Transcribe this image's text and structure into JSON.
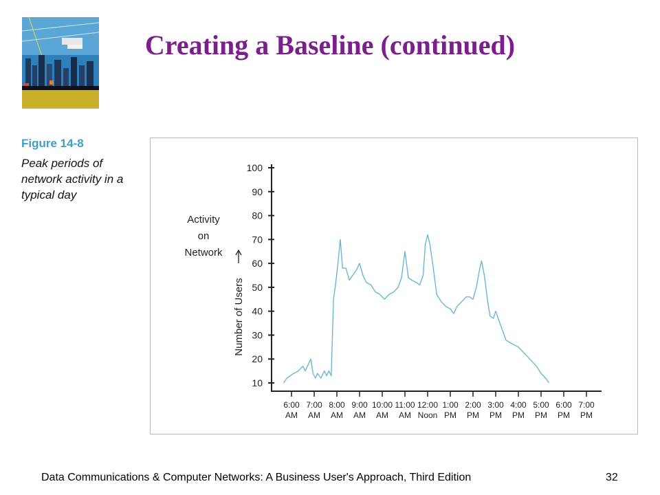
{
  "slide": {
    "title": "Creating a Baseline (continued)",
    "figure_number": "Figure 14-8",
    "figure_caption_lines": [
      "Peak periods of",
      "network activity in a",
      "typical day"
    ],
    "footer": "Data Communications & Computer Networks: A Business User's Approach, Third Edition",
    "page_number": "32"
  },
  "chart_data": {
    "type": "line",
    "title": "",
    "title_label_lines": [
      "Activity",
      "on",
      "Network"
    ],
    "ylabel": "Number of Users",
    "ylim": [
      10,
      100
    ],
    "yticks": [
      10,
      20,
      30,
      40,
      50,
      60,
      70,
      80,
      90,
      100
    ],
    "xticks": [
      {
        "top": "6:00",
        "bottom": "AM"
      },
      {
        "top": "7:00",
        "bottom": "AM"
      },
      {
        "top": "8:00",
        "bottom": "AM"
      },
      {
        "top": "9:00",
        "bottom": "AM"
      },
      {
        "top": "10:00",
        "bottom": "AM"
      },
      {
        "top": "11:00",
        "bottom": "AM"
      },
      {
        "top": "12:00",
        "bottom": "Noon"
      },
      {
        "top": "1:00",
        "bottom": "PM"
      },
      {
        "top": "2:00",
        "bottom": "PM"
      },
      {
        "top": "3:00",
        "bottom": "PM"
      },
      {
        "top": "4:00",
        "bottom": "PM"
      },
      {
        "top": "5:00",
        "bottom": "PM"
      },
      {
        "top": "6:00",
        "bottom": "PM"
      },
      {
        "top": "7:00",
        "bottom": "PM"
      }
    ],
    "line_color": "#6bb6cf",
    "points": [
      [
        -0.35,
        10
      ],
      [
        -0.2,
        12
      ],
      [
        -0.05,
        13
      ],
      [
        0.1,
        14
      ],
      [
        0.3,
        15
      ],
      [
        0.5,
        17
      ],
      [
        0.6,
        15
      ],
      [
        0.75,
        18
      ],
      [
        0.85,
        20
      ],
      [
        0.95,
        14
      ],
      [
        1.05,
        12
      ],
      [
        1.15,
        14
      ],
      [
        1.3,
        12
      ],
      [
        1.45,
        15
      ],
      [
        1.55,
        13
      ],
      [
        1.65,
        15
      ],
      [
        1.75,
        13
      ],
      [
        1.85,
        45
      ],
      [
        1.95,
        52
      ],
      [
        2.05,
        60
      ],
      [
        2.15,
        70
      ],
      [
        2.25,
        58
      ],
      [
        2.4,
        58
      ],
      [
        2.55,
        53
      ],
      [
        2.7,
        55
      ],
      [
        2.85,
        57
      ],
      [
        3.0,
        60
      ],
      [
        3.15,
        55
      ],
      [
        3.3,
        52
      ],
      [
        3.5,
        51
      ],
      [
        3.7,
        48
      ],
      [
        3.9,
        47
      ],
      [
        4.1,
        45
      ],
      [
        4.3,
        47
      ],
      [
        4.5,
        48
      ],
      [
        4.7,
        50
      ],
      [
        4.85,
        54
      ],
      [
        5.0,
        65
      ],
      [
        5.15,
        54
      ],
      [
        5.3,
        53
      ],
      [
        5.5,
        52
      ],
      [
        5.65,
        51
      ],
      [
        5.8,
        55
      ],
      [
        5.9,
        68
      ],
      [
        6.0,
        72
      ],
      [
        6.1,
        68
      ],
      [
        6.25,
        58
      ],
      [
        6.4,
        47
      ],
      [
        6.6,
        44
      ],
      [
        6.8,
        42
      ],
      [
        7.0,
        41
      ],
      [
        7.15,
        39
      ],
      [
        7.3,
        42
      ],
      [
        7.5,
        44
      ],
      [
        7.7,
        46
      ],
      [
        7.85,
        46
      ],
      [
        8.0,
        45
      ],
      [
        8.15,
        50
      ],
      [
        8.3,
        58
      ],
      [
        8.38,
        61
      ],
      [
        8.5,
        55
      ],
      [
        8.65,
        44
      ],
      [
        8.75,
        38
      ],
      [
        8.9,
        37
      ],
      [
        9.0,
        40
      ],
      [
        9.15,
        36
      ],
      [
        9.3,
        32
      ],
      [
        9.45,
        28
      ],
      [
        9.6,
        27
      ],
      [
        9.8,
        26
      ],
      [
        10.0,
        25
      ],
      [
        10.2,
        23
      ],
      [
        10.4,
        21
      ],
      [
        10.6,
        19
      ],
      [
        10.8,
        17
      ],
      [
        11.0,
        14
      ],
      [
        11.2,
        12
      ],
      [
        11.35,
        10
      ]
    ]
  }
}
